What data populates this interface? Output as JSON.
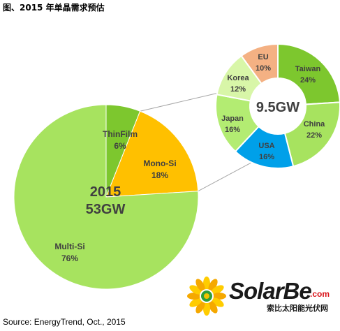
{
  "page": {
    "title": "图、2015 年单晶需求预估",
    "source": "Source: EnergyTrend, Oct., 2015"
  },
  "logo": {
    "name": "SolarBe",
    "suffix": ".com",
    "subtitle": "索比太阳能光伏网"
  },
  "colors": {
    "multi_si": "#a7e35f",
    "mono_si": "#ffc000",
    "thinfilm": "#7dc72e",
    "taiwan": "#7dc72e",
    "china": "#a7e35f",
    "usa": "#00a0e9",
    "japan": "#b3ec72",
    "korea": "#d8f6a8",
    "eu": "#f4b183",
    "connector": "#a6a6a6"
  },
  "chart_data": [
    {
      "type": "pie",
      "center_label": [
        "2015",
        "53GW"
      ],
      "slices": [
        {
          "name": "ThinFilm",
          "value": 6,
          "label": "6%"
        },
        {
          "name": "Mono-Si",
          "value": 18,
          "label": "18%"
        },
        {
          "name": "Multi-Si",
          "value": 76,
          "label": "76%"
        }
      ]
    },
    {
      "type": "pie",
      "variant": "donut",
      "center_label": "9.5GW",
      "slices": [
        {
          "name": "Taiwan",
          "value": 24,
          "label": "24%"
        },
        {
          "name": "China",
          "value": 22,
          "label": "22%"
        },
        {
          "name": "USA",
          "value": 16,
          "label": "16%"
        },
        {
          "name": "Japan",
          "value": 16,
          "label": "16%"
        },
        {
          "name": "Korea",
          "value": 12,
          "label": "12%"
        },
        {
          "name": "EU",
          "value": 10,
          "label": "10%"
        }
      ]
    }
  ]
}
